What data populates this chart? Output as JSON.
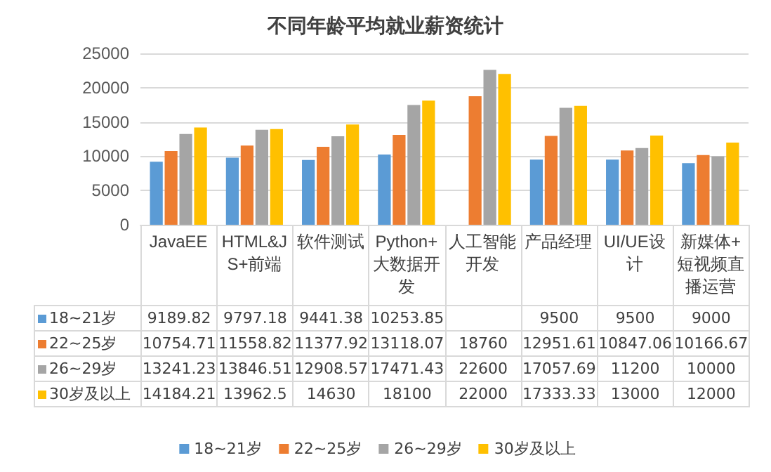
{
  "chart_data": {
    "type": "bar",
    "title": "不同年龄平均就业薪资统计",
    "categories": [
      "JavaEE",
      "HTML&JS+前端",
      "软件测试",
      "Python+大数据开发",
      "人工智能开发",
      "产品经理",
      "UI/UE设计",
      "新媒体+短视频直播运营"
    ],
    "series": [
      {
        "name": "18~21岁",
        "color": "#5b9bd5",
        "values": [
          9189.82,
          9797.18,
          9441.38,
          10253.85,
          null,
          9500,
          9500,
          9000
        ]
      },
      {
        "name": "22~25岁",
        "color": "#ed7d31",
        "values": [
          10754.71,
          11558.82,
          11377.92,
          13118.07,
          18760,
          12951.61,
          10847.06,
          10166.67
        ]
      },
      {
        "name": "26~29岁",
        "color": "#a5a5a5",
        "values": [
          13241.23,
          13846.51,
          12908.57,
          17471.43,
          22600,
          17057.69,
          11200,
          10000
        ]
      },
      {
        "name": "30岁及以上",
        "color": "#ffc000",
        "values": [
          14184.21,
          13962.5,
          14630,
          18100,
          22000,
          17333.33,
          13000,
          12000
        ]
      }
    ],
    "ylim": [
      0,
      25000
    ],
    "yticks": [
      0,
      5000,
      10000,
      15000,
      20000,
      25000
    ],
    "grid": "y",
    "legend": "bottom",
    "data_labels": true
  }
}
